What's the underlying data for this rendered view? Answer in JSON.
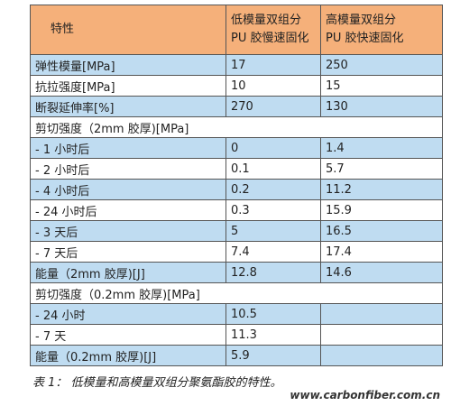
{
  "table": {
    "header": [
      "特性",
      "低模量双组分\nPU 胶慢速固化",
      "高模量双组分\nPU 胶快速固化"
    ],
    "rows": [
      [
        "弹性模量[MPa]",
        "17",
        "250"
      ],
      [
        "抗拉强度[MPa]",
        "10",
        "15"
      ],
      [
        "断裂延伸率[%]",
        "270",
        "130"
      ],
      [
        "剪切强度（2mm 胶厚)[MPa]"
      ],
      [
        "- 1 小时后",
        "0",
        "1.4"
      ],
      [
        "- 2 小时后",
        "0.1",
        "5.7"
      ],
      [
        "- 4 小时后",
        "0.2",
        "11.2"
      ],
      [
        "- 24 小时后",
        "0.3",
        "15.9"
      ],
      [
        "- 3 天后",
        "5",
        "16.5"
      ],
      [
        "- 7 天后",
        "7.4",
        "17.4"
      ],
      [
        "能量（2mm 胶厚)[J]",
        "12.8",
        "14.6"
      ],
      [
        "剪切强度（0.2mm 胶厚)[MPa]"
      ],
      [
        "- 24 小时",
        "10.5",
        ""
      ],
      [
        "- 7 天",
        "11.3",
        ""
      ],
      [
        "能量（0.2mm 胶厚)[J]",
        "5.9",
        ""
      ]
    ]
  },
  "caption": "表 1：  低模量和高模量双组分聚氨酯胶的特性。",
  "watermark": "www.carbonfiber.com.cn"
}
